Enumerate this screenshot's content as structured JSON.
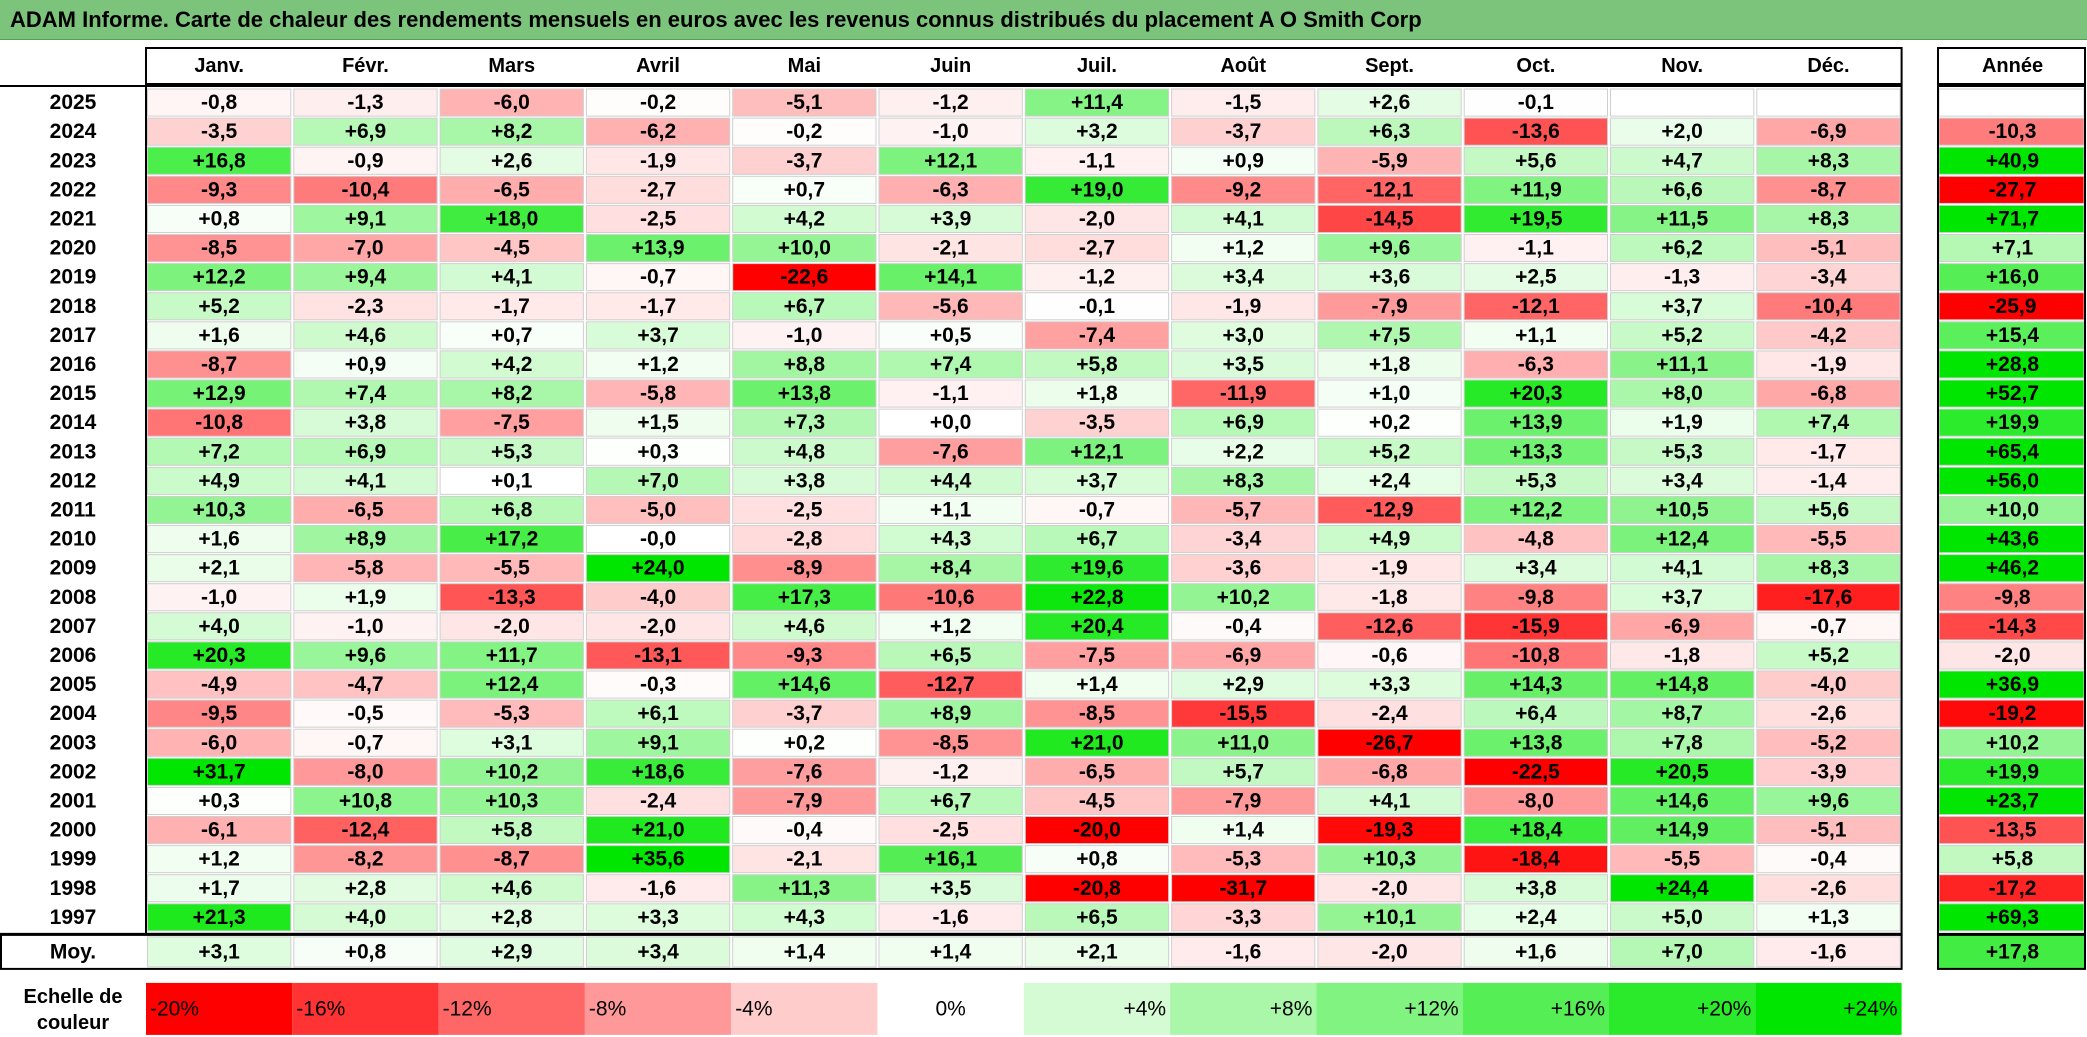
{
  "title": "ADAM Informe. Carte de chaleur des rendements mensuels en euros avec les revenus connus distribués du placement A O Smith Corp",
  "chart_data": {
    "type": "heatmap",
    "title": "ADAM Informe. Carte de chaleur des rendements mensuels en euros avec les revenus connus distribués du placement A O Smith Corp",
    "columns": [
      "Janv.",
      "Févr.",
      "Mars",
      "Avril",
      "Mai",
      "Juin",
      "Juil.",
      "Août",
      "Sept.",
      "Oct.",
      "Nov.",
      "Déc."
    ],
    "year_column_header": "Année",
    "rows": [
      {
        "year": "2025",
        "months": [
          "-0,8",
          "-1,3",
          "-6,0",
          "-0,2",
          "-5,1",
          "-1,2",
          "+11,4",
          "-1,5",
          "+2,6",
          "-0,1",
          "",
          ""
        ],
        "annual": ""
      },
      {
        "year": "2024",
        "months": [
          "-3,5",
          "+6,9",
          "+8,2",
          "-6,2",
          "-0,2",
          "-1,0",
          "+3,2",
          "-3,7",
          "+6,3",
          "-13,6",
          "+2,0",
          "-6,9"
        ],
        "annual": "-10,3"
      },
      {
        "year": "2023",
        "months": [
          "+16,8",
          "-0,9",
          "+2,6",
          "-1,9",
          "-3,7",
          "+12,1",
          "-1,1",
          "+0,9",
          "-5,9",
          "+5,6",
          "+4,7",
          "+8,3"
        ],
        "annual": "+40,9"
      },
      {
        "year": "2022",
        "months": [
          "-9,3",
          "-10,4",
          "-6,5",
          "-2,7",
          "+0,7",
          "-6,3",
          "+19,0",
          "-9,2",
          "-12,1",
          "+11,9",
          "+6,6",
          "-8,7"
        ],
        "annual": "-27,7"
      },
      {
        "year": "2021",
        "months": [
          "+0,8",
          "+9,1",
          "+18,0",
          "-2,5",
          "+4,2",
          "+3,9",
          "-2,0",
          "+4,1",
          "-14,5",
          "+19,5",
          "+11,5",
          "+8,3"
        ],
        "annual": "+71,7"
      },
      {
        "year": "2020",
        "months": [
          "-8,5",
          "-7,0",
          "-4,5",
          "+13,9",
          "+10,0",
          "-2,1",
          "-2,7",
          "+1,2",
          "+9,6",
          "-1,1",
          "+6,2",
          "-5,1"
        ],
        "annual": "+7,1"
      },
      {
        "year": "2019",
        "months": [
          "+12,2",
          "+9,4",
          "+4,1",
          "-0,7",
          "-22,6",
          "+14,1",
          "-1,2",
          "+3,4",
          "+3,6",
          "+2,5",
          "-1,3",
          "-3,4"
        ],
        "annual": "+16,0"
      },
      {
        "year": "2018",
        "months": [
          "+5,2",
          "-2,3",
          "-1,7",
          "-1,7",
          "+6,7",
          "-5,6",
          "-0,1",
          "-1,9",
          "-7,9",
          "-12,1",
          "+3,7",
          "-10,4"
        ],
        "annual": "-25,9"
      },
      {
        "year": "2017",
        "months": [
          "+1,6",
          "+4,6",
          "+0,7",
          "+3,7",
          "-1,0",
          "+0,5",
          "-7,4",
          "+3,0",
          "+7,5",
          "+1,1",
          "+5,2",
          "-4,2"
        ],
        "annual": "+15,4"
      },
      {
        "year": "2016",
        "months": [
          "-8,7",
          "+0,9",
          "+4,2",
          "+1,2",
          "+8,8",
          "+7,4",
          "+5,8",
          "+3,5",
          "+1,8",
          "-6,3",
          "+11,1",
          "-1,9"
        ],
        "annual": "+28,8"
      },
      {
        "year": "2015",
        "months": [
          "+12,9",
          "+7,4",
          "+8,2",
          "-5,8",
          "+13,8",
          "-1,1",
          "+1,8",
          "-11,9",
          "+1,0",
          "+20,3",
          "+8,0",
          "-6,8"
        ],
        "annual": "+52,7"
      },
      {
        "year": "2014",
        "months": [
          "-10,8",
          "+3,8",
          "-7,5",
          "+1,5",
          "+7,3",
          "+0,0",
          "-3,5",
          "+6,9",
          "+0,2",
          "+13,9",
          "+1,9",
          "+7,4"
        ],
        "annual": "+19,9"
      },
      {
        "year": "2013",
        "months": [
          "+7,2",
          "+6,9",
          "+5,3",
          "+0,3",
          "+4,8",
          "-7,6",
          "+12,1",
          "+2,2",
          "+5,2",
          "+13,3",
          "+5,3",
          "-1,7"
        ],
        "annual": "+65,4"
      },
      {
        "year": "2012",
        "months": [
          "+4,9",
          "+4,1",
          "+0,1",
          "+7,0",
          "+3,8",
          "+4,4",
          "+3,7",
          "+8,3",
          "+2,4",
          "+5,3",
          "+3,4",
          "-1,4"
        ],
        "annual": "+56,0"
      },
      {
        "year": "2011",
        "months": [
          "+10,3",
          "-6,5",
          "+6,8",
          "-5,0",
          "-2,5",
          "+1,1",
          "-0,7",
          "-5,7",
          "-12,9",
          "+12,2",
          "+10,5",
          "+5,6"
        ],
        "annual": "+10,0"
      },
      {
        "year": "2010",
        "months": [
          "+1,6",
          "+8,9",
          "+17,2",
          "-0,0",
          "-2,8",
          "+4,3",
          "+6,7",
          "-3,4",
          "+4,9",
          "-4,8",
          "+12,4",
          "-5,5"
        ],
        "annual": "+43,6"
      },
      {
        "year": "2009",
        "months": [
          "+2,1",
          "-5,8",
          "-5,5",
          "+24,0",
          "-8,9",
          "+8,4",
          "+19,6",
          "-3,6",
          "-1,9",
          "+3,4",
          "+4,1",
          "+8,3"
        ],
        "annual": "+46,2"
      },
      {
        "year": "2008",
        "months": [
          "-1,0",
          "+1,9",
          "-13,3",
          "-4,0",
          "+17,3",
          "-10,6",
          "+22,8",
          "+10,2",
          "-1,8",
          "-9,8",
          "+3,7",
          "-17,6"
        ],
        "annual": "-9,8"
      },
      {
        "year": "2007",
        "months": [
          "+4,0",
          "-1,0",
          "-2,0",
          "-2,0",
          "+4,6",
          "+1,2",
          "+20,4",
          "-0,4",
          "-12,6",
          "-15,9",
          "-6,9",
          "-0,7"
        ],
        "annual": "-14,3"
      },
      {
        "year": "2006",
        "months": [
          "+20,3",
          "+9,6",
          "+11,7",
          "-13,1",
          "-9,3",
          "+6,5",
          "-7,5",
          "-6,9",
          "-0,6",
          "-10,8",
          "-1,8",
          "+5,2"
        ],
        "annual": "-2,0"
      },
      {
        "year": "2005",
        "months": [
          "-4,9",
          "-4,7",
          "+12,4",
          "-0,3",
          "+14,6",
          "-12,7",
          "+1,4",
          "+2,9",
          "+3,3",
          "+14,3",
          "+14,8",
          "-4,0"
        ],
        "annual": "+36,9"
      },
      {
        "year": "2004",
        "months": [
          "-9,5",
          "-0,5",
          "-5,3",
          "+6,1",
          "-3,7",
          "+8,9",
          "-8,5",
          "-15,5",
          "-2,4",
          "+6,4",
          "+8,7",
          "-2,6"
        ],
        "annual": "-19,2"
      },
      {
        "year": "2003",
        "months": [
          "-6,0",
          "-0,7",
          "+3,1",
          "+9,1",
          "+0,2",
          "-8,5",
          "+21,0",
          "+11,0",
          "-26,7",
          "+13,8",
          "+7,8",
          "-5,2"
        ],
        "annual": "+10,2"
      },
      {
        "year": "2002",
        "months": [
          "+31,7",
          "-8,0",
          "+10,2",
          "+18,6",
          "-7,6",
          "-1,2",
          "-6,5",
          "+5,7",
          "-6,8",
          "-22,5",
          "+20,5",
          "-3,9"
        ],
        "annual": "+19,9"
      },
      {
        "year": "2001",
        "months": [
          "+0,3",
          "+10,8",
          "+10,3",
          "-2,4",
          "-7,9",
          "+6,7",
          "-4,5",
          "-7,9",
          "+4,1",
          "-8,0",
          "+14,6",
          "+9,6"
        ],
        "annual": "+23,7"
      },
      {
        "year": "2000",
        "months": [
          "-6,1",
          "-12,4",
          "+5,8",
          "+21,0",
          "-0,4",
          "-2,5",
          "-20,0",
          "+1,4",
          "-19,3",
          "+18,4",
          "+14,9",
          "-5,1"
        ],
        "annual": "-13,5"
      },
      {
        "year": "1999",
        "months": [
          "+1,2",
          "-8,2",
          "-8,7",
          "+35,6",
          "-2,1",
          "+16,1",
          "+0,8",
          "-5,3",
          "+10,3",
          "-18,4",
          "-5,5",
          "-0,4"
        ],
        "annual": "+5,8"
      },
      {
        "year": "1998",
        "months": [
          "+1,7",
          "+2,8",
          "+4,6",
          "-1,6",
          "+11,3",
          "+3,5",
          "-20,8",
          "-31,7",
          "-2,0",
          "+3,8",
          "+24,4",
          "-2,6"
        ],
        "annual": "-17,2"
      },
      {
        "year": "1997",
        "months": [
          "+21,3",
          "+4,0",
          "+2,8",
          "+3,3",
          "+4,3",
          "-1,6",
          "+6,5",
          "-3,3",
          "+10,1",
          "+2,4",
          "+5,0",
          "+1,3"
        ],
        "annual": "+69,3"
      }
    ],
    "average": {
      "label": "Moy.",
      "months": [
        "+3,1",
        "+0,8",
        "+2,9",
        "+3,4",
        "+1,4",
        "+1,4",
        "+2,1",
        "-1,6",
        "-2,0",
        "+1,6",
        "+7,0",
        "-1,6"
      ],
      "annual": "+17,8"
    },
    "color_scale": {
      "label_line1": "Echelle de",
      "label_line2": "couleur",
      "stops": [
        "-20%",
        "-16%",
        "-12%",
        "-8%",
        "-4%",
        "0%",
        "+4%",
        "+8%",
        "+12%",
        "+16%",
        "+20%",
        "+24%"
      ],
      "stop_values": [
        -20,
        -16,
        -12,
        -8,
        -4,
        0,
        4,
        8,
        12,
        16,
        20,
        24
      ],
      "negative_color": "#ff0000",
      "positive_color": "#00e600",
      "neutral_color": "#ffffff"
    }
  }
}
